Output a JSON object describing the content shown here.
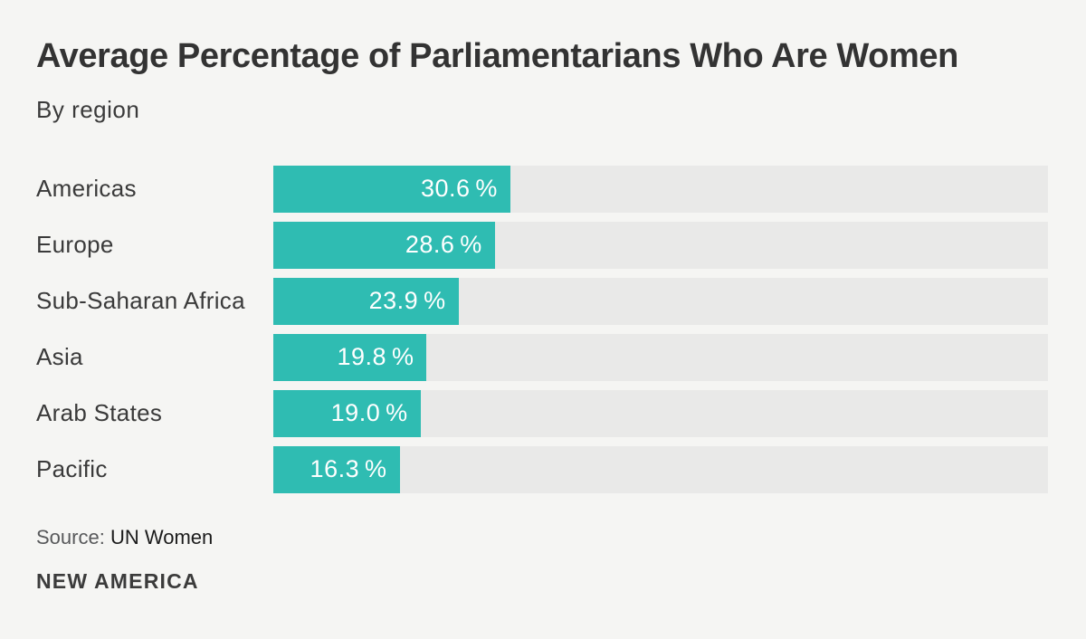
{
  "header": {
    "title": "Average Percentage of Parliamentarians Who Are Women",
    "subtitle": "By region"
  },
  "chart_data": {
    "type": "bar",
    "orientation": "horizontal",
    "title": "Average Percentage of Parliamentarians Who Are Women",
    "subtitle": "By region",
    "categories": [
      "Americas",
      "Europe",
      "Sub-Saharan Africa",
      "Asia",
      "Arab States",
      "Pacific"
    ],
    "values": [
      30.6,
      28.6,
      23.9,
      19.8,
      19.0,
      16.3
    ],
    "value_labels": [
      "30.6 %",
      "28.6 %",
      "23.9 %",
      "19.8 %",
      "19.0 %",
      "16.3 %"
    ],
    "unit": "%",
    "xlim": [
      0,
      100
    ],
    "grid": false,
    "legend": false,
    "value_label_position": "inside-end"
  },
  "footer": {
    "source_label": "Source:",
    "source_value": "UN Women",
    "logo": "NEW AMERICA"
  },
  "colors": {
    "background": "#F5F5F3",
    "bar": "#2FBCB2",
    "track": "#E9E9E8",
    "title_text": "#333333",
    "label_text": "#3a3a3a",
    "value_text": "#FFFFFF",
    "source_label_text": "#58595b",
    "source_value_text": "#1b1b1b",
    "logo_text": "#3b3b3b"
  }
}
